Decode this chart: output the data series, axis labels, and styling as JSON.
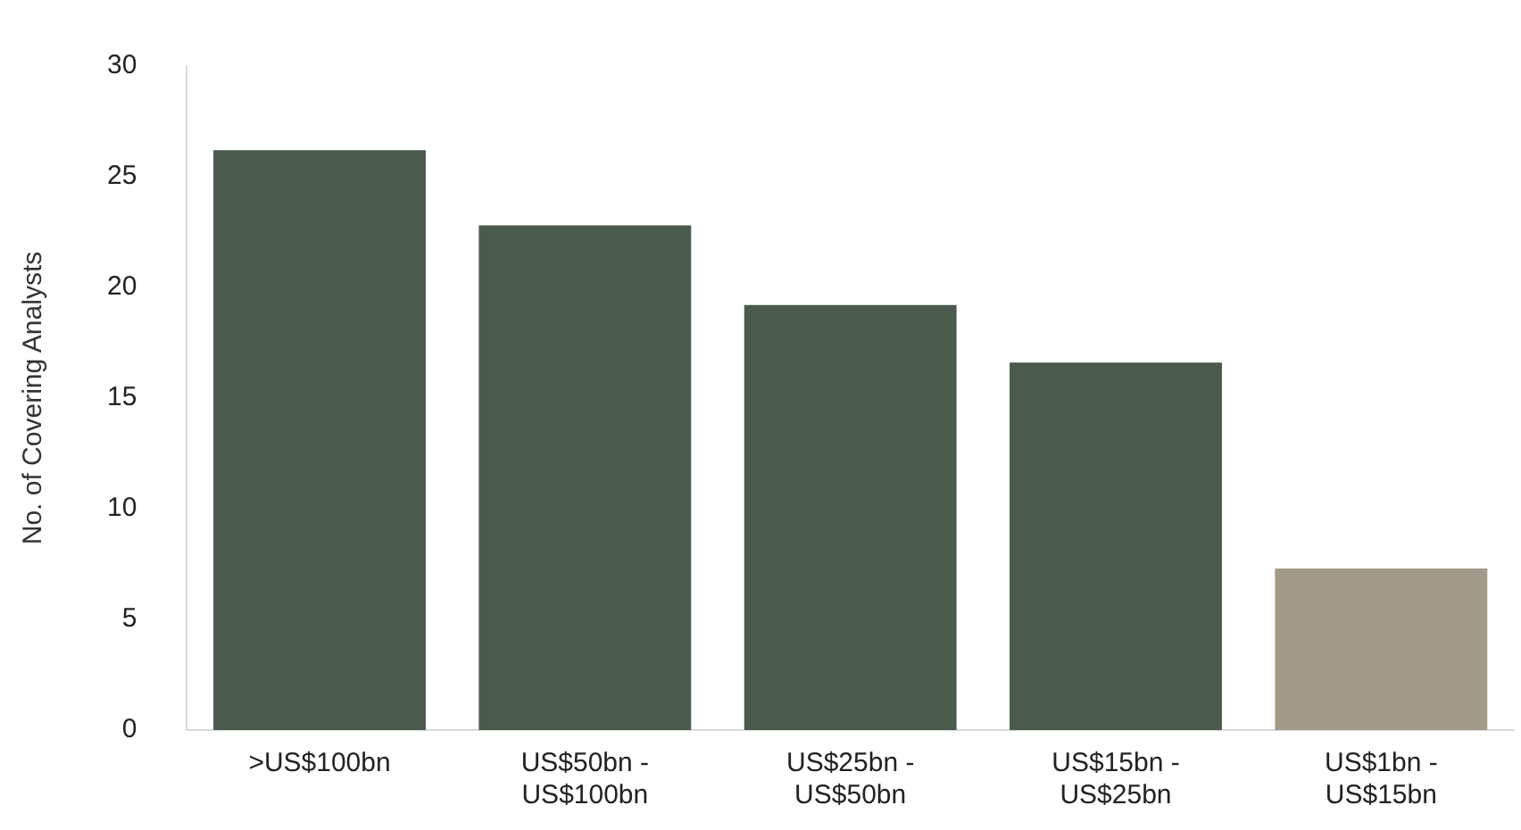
{
  "chart_data": {
    "type": "bar",
    "ylabel": "No. of Covering Analysts",
    "categories": [
      ">US$100bn",
      "US$50bn -\nUS$100bn",
      "US$25bn -\nUS$50bn",
      "US$15bn -\nUS$25bn",
      "US$1bn -\nUS$15bn"
    ],
    "values": [
      26.2,
      22.8,
      19.2,
      16.6,
      7.3
    ],
    "colors": [
      "#4a5b4d",
      "#4a5b4d",
      "#4a5b4d",
      "#4a5b4d",
      "#a39b8a"
    ],
    "ylim": [
      0,
      30
    ],
    "yticks": [
      0,
      5,
      10,
      15,
      20,
      25,
      30
    ],
    "grid": false,
    "legend": false
  }
}
